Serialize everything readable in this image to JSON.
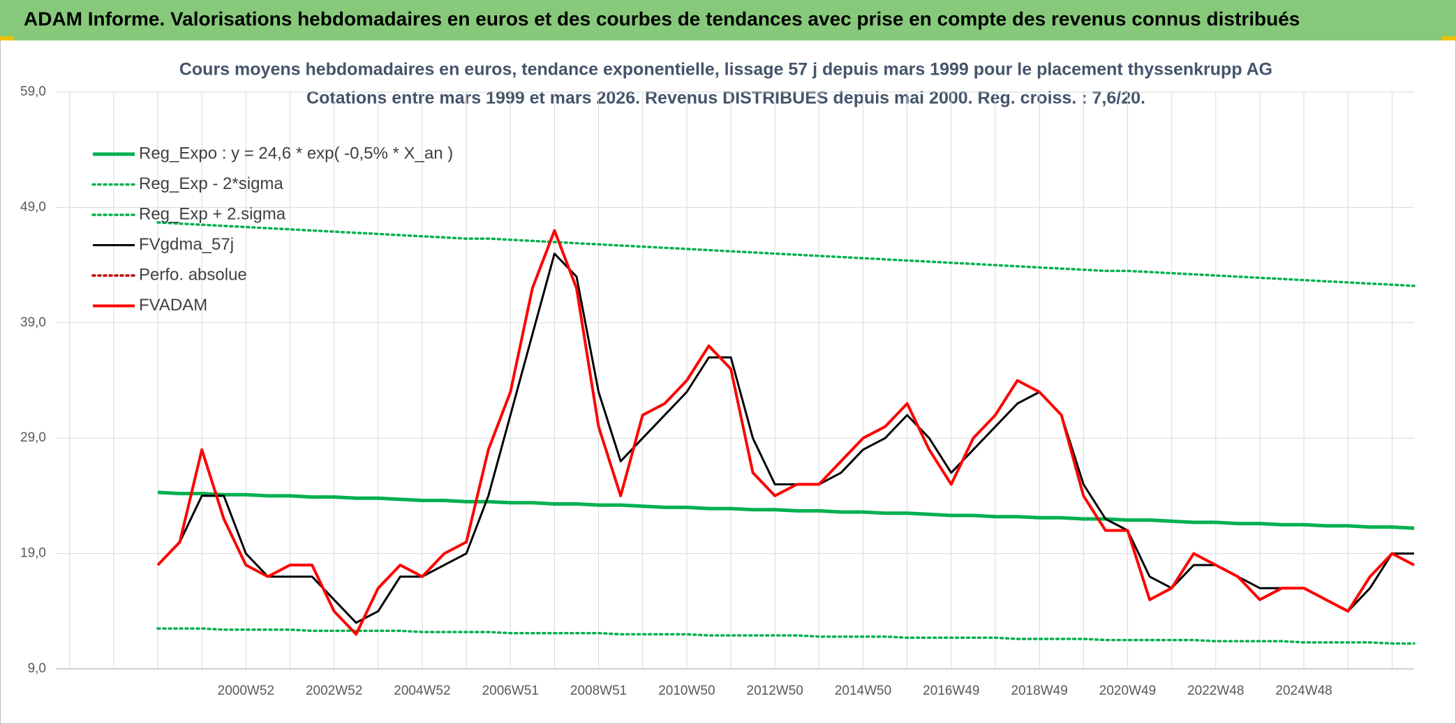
{
  "header": {
    "title": "ADAM Informe. Valorisations hebdomadaires en euros et des courbes de tendances avec prise en compte des revenus connus distribués"
  },
  "chart_data": {
    "type": "line",
    "title": "Cours moyens hebdomadaires en euros, tendance exponentielle, lissage 57 j depuis mars 1999 pour le placement thyssenkrupp AG",
    "subtitle": "Cotations entre mars 1999 et mars 2026. Revenus DISTRIBUES depuis mai 2000. Reg. croiss. : 7,6/20.",
    "categories": [
      null,
      null,
      null,
      null,
      "2000W52",
      null,
      null,
      null,
      "2002W52",
      null,
      null,
      null,
      "2004W52",
      null,
      null,
      null,
      "2006W51",
      null,
      null,
      null,
      "2008W51",
      null,
      null,
      null,
      "2010W50",
      null,
      null,
      null,
      "2012W50",
      null,
      null,
      null,
      "2014W50",
      null,
      null,
      null,
      "2016W49",
      null,
      null,
      null,
      "2018W49",
      null,
      null,
      null,
      "2020W49",
      null,
      null,
      null,
      "2022W48",
      null,
      null,
      null,
      "2024W48",
      null,
      null,
      null,
      null,
      null
    ],
    "ylim": [
      9,
      59
    ],
    "yticks": [
      {
        "value": 9,
        "label": "9,0"
      },
      {
        "value": 19,
        "label": "19,0"
      },
      {
        "value": 29,
        "label": "29,0"
      },
      {
        "value": 39,
        "label": "39,0"
      },
      {
        "value": 49,
        "label": "49,0"
      },
      {
        "value": 59,
        "label": "59,0"
      }
    ],
    "grid": true,
    "legend": "top-left",
    "series": [
      {
        "name": "Reg_Expo : y = 24,6 * exp( -0,5% *  X_an )",
        "color": "#00b050",
        "style": "solid",
        "values": [
          24.3,
          24.2,
          24.2,
          24.1,
          24.1,
          24.0,
          24.0,
          23.9,
          23.9,
          23.8,
          23.8,
          23.7,
          23.6,
          23.6,
          23.5,
          23.5,
          23.4,
          23.4,
          23.3,
          23.3,
          23.2,
          23.2,
          23.1,
          23.0,
          23.0,
          22.9,
          22.9,
          22.8,
          22.8,
          22.7,
          22.7,
          22.6,
          22.6,
          22.5,
          22.5,
          22.4,
          22.3,
          22.3,
          22.2,
          22.2,
          22.1,
          22.1,
          22.0,
          22.0,
          21.9,
          21.9,
          21.8,
          21.7,
          21.7,
          21.6,
          21.6,
          21.5,
          21.5,
          21.4,
          21.4,
          21.3,
          21.3,
          21.2
        ]
      },
      {
        "name": "Reg_Exp - 2*sigma",
        "color": "#00b050",
        "style": "dotted",
        "values": [
          12.5,
          12.5,
          12.5,
          12.4,
          12.4,
          12.4,
          12.4,
          12.3,
          12.3,
          12.3,
          12.3,
          12.3,
          12.2,
          12.2,
          12.2,
          12.2,
          12.1,
          12.1,
          12.1,
          12.1,
          12.1,
          12.0,
          12.0,
          12.0,
          12.0,
          11.9,
          11.9,
          11.9,
          11.9,
          11.9,
          11.8,
          11.8,
          11.8,
          11.8,
          11.7,
          11.7,
          11.7,
          11.7,
          11.7,
          11.6,
          11.6,
          11.6,
          11.6,
          11.5,
          11.5,
          11.5,
          11.5,
          11.5,
          11.4,
          11.4,
          11.4,
          11.4,
          11.3,
          11.3,
          11.3,
          11.3,
          11.2,
          11.2
        ]
      },
      {
        "name": "Reg_Exp + 2.sigma",
        "color": "#00b050",
        "style": "dotted",
        "values": [
          47.7,
          47.6,
          47.5,
          47.4,
          47.3,
          47.2,
          47.1,
          47.0,
          46.9,
          46.8,
          46.7,
          46.6,
          46.5,
          46.4,
          46.3,
          46.3,
          46.2,
          46.1,
          46.0,
          45.9,
          45.8,
          45.7,
          45.6,
          45.5,
          45.4,
          45.3,
          45.2,
          45.1,
          45.0,
          44.9,
          44.8,
          44.7,
          44.6,
          44.5,
          44.4,
          44.3,
          44.2,
          44.1,
          44.0,
          43.9,
          43.8,
          43.7,
          43.6,
          43.5,
          43.5,
          43.4,
          43.3,
          43.2,
          43.1,
          43.0,
          42.9,
          42.8,
          42.7,
          42.6,
          42.5,
          42.4,
          42.3,
          42.2
        ]
      },
      {
        "name": "FVgdma_57j",
        "color": "#000000",
        "style": "solid",
        "values": [
          18,
          20,
          24,
          24,
          19,
          17,
          17,
          17,
          15,
          13,
          14,
          17,
          17,
          18,
          19,
          24,
          31,
          38,
          45,
          43,
          33,
          27,
          29,
          31,
          33,
          36,
          36,
          29,
          25,
          25,
          25,
          26,
          28,
          29,
          31,
          29,
          26,
          28,
          30,
          32,
          33,
          31,
          25,
          22,
          21,
          17,
          16,
          18,
          18,
          17,
          16,
          16,
          16,
          15,
          14,
          16,
          19,
          19
        ]
      },
      {
        "name": "Perfo. absolue",
        "color": "#c00000",
        "style": "dotted",
        "values": [
          null,
          null,
          null,
          null,
          null,
          null,
          null,
          null,
          null,
          null,
          null,
          null,
          null,
          null,
          null,
          null,
          null,
          null,
          null,
          null,
          null,
          null,
          null,
          null,
          null,
          null,
          null,
          null,
          null,
          null,
          null,
          null,
          null,
          null,
          null,
          null,
          null,
          null,
          null,
          null,
          null,
          null,
          null,
          null,
          null,
          null,
          null,
          null,
          null,
          null,
          null,
          null,
          null,
          null,
          null,
          null,
          null,
          null
        ]
      },
      {
        "name": "FVADAM",
        "color": "#ff0000",
        "style": "solid",
        "values": [
          18,
          20,
          28,
          22,
          18,
          17,
          18,
          18,
          14,
          12,
          16,
          18,
          17,
          19,
          20,
          28,
          33,
          42,
          47,
          42,
          30,
          24,
          31,
          32,
          34,
          37,
          35,
          26,
          24,
          25,
          25,
          27,
          29,
          30,
          32,
          28,
          25,
          29,
          31,
          34,
          33,
          31,
          24,
          21,
          21,
          15,
          16,
          19,
          18,
          17,
          15,
          16,
          16,
          15,
          14,
          17,
          19,
          18
        ]
      }
    ]
  }
}
